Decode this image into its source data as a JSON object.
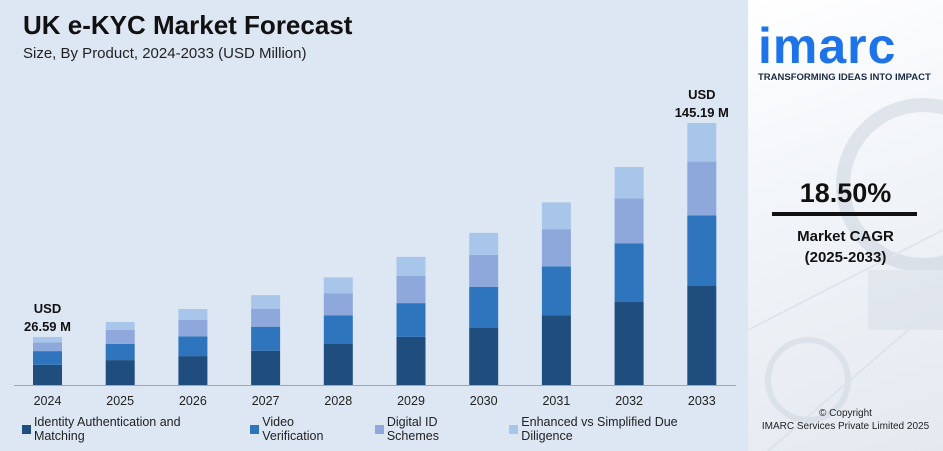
{
  "header": {
    "title": "UK e-KYC Market Forecast",
    "subtitle": "Size, By Product, 2024-2033 (USD Million)"
  },
  "annotations": {
    "first": {
      "line1": "USD",
      "line2": "26.59 M"
    },
    "last": {
      "line1": "USD",
      "line2": "145.19 M"
    }
  },
  "sidebar": {
    "brand": "imarc",
    "tagline": "TRANSFORMING IDEAS INTO IMPACT",
    "cagr_value": "18.50%",
    "cagr_label": "Market CAGR",
    "cagr_period": "(2025-2033)",
    "copyright_line1": "© Copyright",
    "copyright_line2": "IMARC Services Private Limited 2025"
  },
  "colors": {
    "background": "#dde6f3",
    "brand_blue": "#1e73e8"
  },
  "chart_data": {
    "type": "bar",
    "stacked": true,
    "title": "UK e-KYC Market Forecast",
    "subtitle": "Size, By Product, 2024-2033 (USD Million)",
    "categories": [
      "2024",
      "2025",
      "2026",
      "2027",
      "2028",
      "2029",
      "2030",
      "2031",
      "2032",
      "2033"
    ],
    "series": [
      {
        "name": "Identity Authentication and Matching",
        "color": "#1f4e7e",
        "values": [
          11.2,
          13.8,
          16.0,
          19.0,
          22.7,
          26.7,
          32.0,
          38.5,
          46.4,
          55.1
        ]
      },
      {
        "name": "Video Verification",
        "color": "#2f75bd",
        "values": [
          7.6,
          9.0,
          11.0,
          13.3,
          15.8,
          18.7,
          22.3,
          27.3,
          32.0,
          38.9
        ]
      },
      {
        "name": "Digital ID Schemes",
        "color": "#8ea8dc",
        "values": [
          4.8,
          7.7,
          9.0,
          10.0,
          12.2,
          15.0,
          17.8,
          20.6,
          25.0,
          29.8
        ]
      },
      {
        "name": "Enhanced vs Simplified Due Diligence",
        "color": "#a7c6ea",
        "values": [
          3.0,
          4.4,
          6.1,
          7.5,
          8.9,
          10.6,
          12.2,
          14.8,
          17.4,
          21.4
        ]
      }
    ],
    "totals": [
      26.59,
      null,
      null,
      null,
      null,
      null,
      null,
      null,
      null,
      145.19
    ],
    "ylim": [
      0,
      160
    ],
    "grid": false,
    "legend": "bottom",
    "xlabel": "",
    "ylabel": ""
  }
}
